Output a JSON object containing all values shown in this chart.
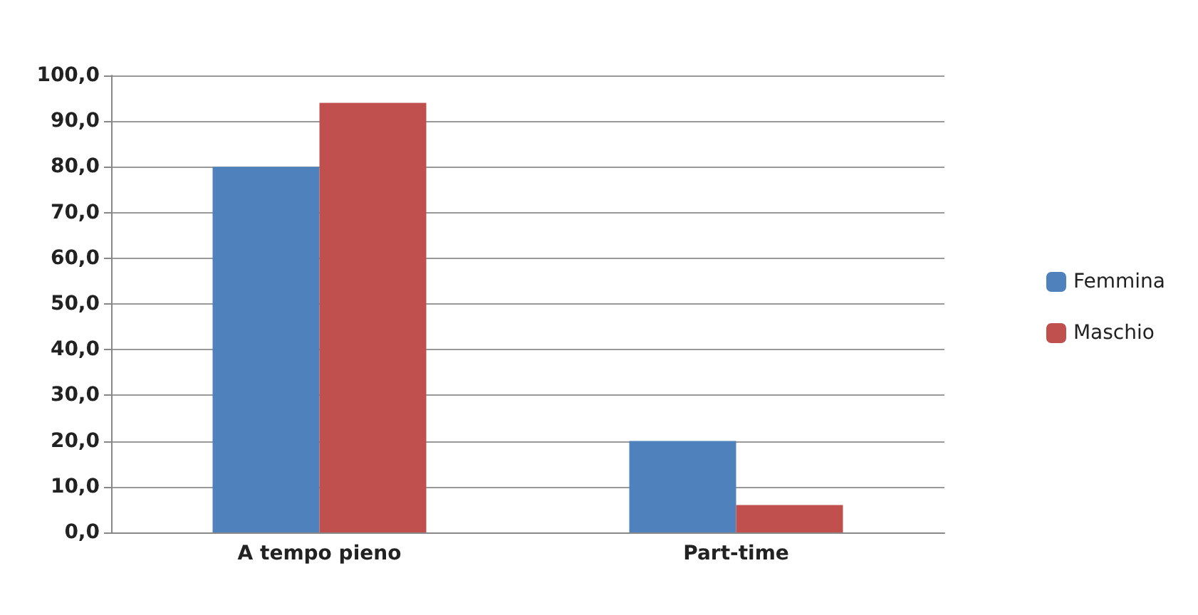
{
  "chart_data": {
    "type": "bar",
    "categories": [
      "A tempo pieno",
      "Part-time"
    ],
    "series": [
      {
        "name": "Femmina",
        "color": "#4f81bd",
        "values": [
          80,
          20
        ]
      },
      {
        "name": "Maschio",
        "color": "#c0504d",
        "values": [
          94,
          6
        ]
      }
    ],
    "ylim": [
      0,
      100
    ],
    "yticks": [
      {
        "value": 0,
        "label": "0,0"
      },
      {
        "value": 10,
        "label": "10,0"
      },
      {
        "value": 20,
        "label": "20,0"
      },
      {
        "value": 30,
        "label": "30,0"
      },
      {
        "value": 40,
        "label": "40,0"
      },
      {
        "value": 50,
        "label": "50,0"
      },
      {
        "value": 60,
        "label": "60,0"
      },
      {
        "value": 70,
        "label": "70,0"
      },
      {
        "value": 80,
        "label": "80,0"
      },
      {
        "value": 90,
        "label": "90,0"
      },
      {
        "value": 100,
        "label": "100,0"
      }
    ],
    "grid": "y",
    "legend": "right"
  }
}
